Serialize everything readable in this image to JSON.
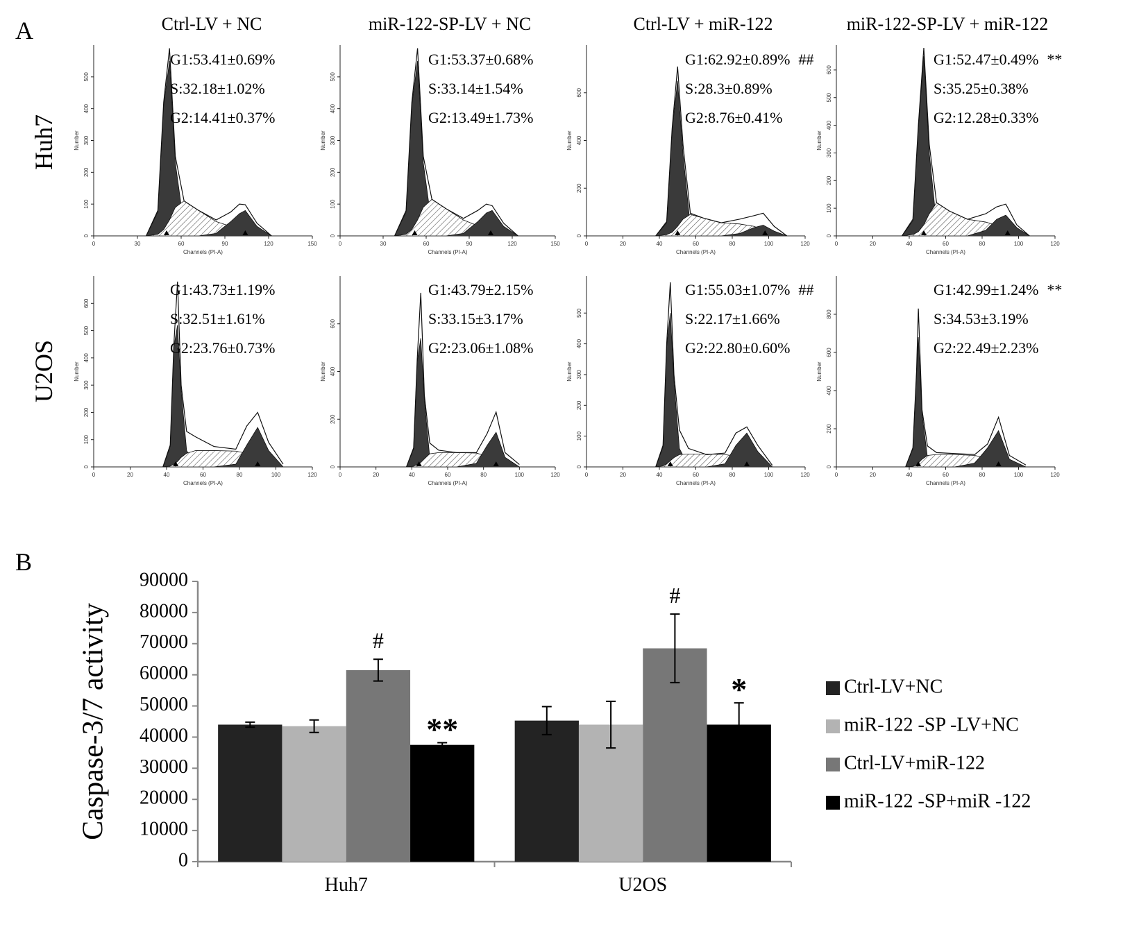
{
  "panel_labels": [
    "A",
    "B"
  ],
  "column_titles": [
    "Ctrl-LV + NC",
    "miR-122-SP-LV + NC",
    "Ctrl-LV + miR-122",
    "miR-122-SP-LV + miR-122"
  ],
  "row_titles": [
    "Huh7",
    "U2OS"
  ],
  "chart_data": [
    {
      "type": "area",
      "xlabel": "Channels (PI-A)",
      "ylabel": "Number",
      "xlim": [
        0,
        150
      ],
      "xticks": [
        0,
        30,
        60,
        90,
        120,
        150
      ],
      "ylim": [
        0,
        600
      ],
      "yticks": [
        0,
        100,
        200,
        300,
        400,
        500
      ],
      "x": [
        36,
        44,
        48,
        52,
        56,
        62,
        72,
        84,
        94,
        100,
        104,
        112,
        122
      ],
      "series": [
        {
          "style": "solid",
          "color": "#3a3a3a",
          "values": [
            0,
            75,
            410,
            550,
            230,
            30,
            0,
            0,
            0,
            0,
            0,
            0,
            0
          ]
        },
        {
          "style": "hatch",
          "color": "#555555",
          "values": [
            0,
            5,
            20,
            50,
            90,
            110,
            80,
            45,
            30,
            20,
            12,
            3,
            0
          ]
        },
        {
          "style": "solid",
          "color": "#3a3a3a",
          "values": [
            0,
            0,
            0,
            0,
            0,
            0,
            0,
            8,
            45,
            70,
            80,
            30,
            0
          ]
        },
        {
          "style": "outline",
          "color": "#111111",
          "values": [
            0,
            80,
            420,
            590,
            250,
            110,
            80,
            50,
            75,
            100,
            98,
            40,
            0
          ]
        }
      ],
      "peaks": [
        50,
        104
      ],
      "annotations": [
        "G1:53.41±0.69%",
        "S:32.18±1.02%",
        "G2:14.41±0.37%"
      ]
    },
    {
      "type": "area",
      "xlabel": "Channels (PI-A)",
      "ylabel": "Number",
      "xlim": [
        0,
        150
      ],
      "xticks": [
        0,
        30,
        60,
        90,
        120,
        150
      ],
      "ylim": [
        0,
        600
      ],
      "yticks": [
        0,
        100,
        200,
        300,
        400,
        500
      ],
      "x": [
        38,
        46,
        50,
        54,
        58,
        64,
        74,
        86,
        96,
        102,
        106,
        114,
        124
      ],
      "series": [
        {
          "style": "solid",
          "color": "#3a3a3a",
          "values": [
            0,
            75,
            410,
            550,
            230,
            30,
            0,
            0,
            0,
            0,
            0,
            0,
            0
          ]
        },
        {
          "style": "hatch",
          "color": "#555555",
          "values": [
            0,
            5,
            20,
            50,
            90,
            115,
            85,
            50,
            32,
            20,
            12,
            3,
            0
          ]
        },
        {
          "style": "solid",
          "color": "#3a3a3a",
          "values": [
            0,
            0,
            0,
            0,
            0,
            0,
            0,
            8,
            45,
            72,
            80,
            30,
            0
          ]
        },
        {
          "style": "outline",
          "color": "#111111",
          "values": [
            0,
            80,
            420,
            590,
            250,
            115,
            85,
            55,
            80,
            100,
            95,
            40,
            0
          ]
        }
      ],
      "peaks": [
        52,
        105
      ],
      "annotations": [
        "G1:53.37±0.68%",
        "S:33.14±1.54%",
        "G2:13.49±1.73%"
      ]
    },
    {
      "type": "area",
      "xlabel": "Channels (PI-A)",
      "ylabel": "Number",
      "xlim": [
        0,
        120
      ],
      "xticks": [
        0,
        20,
        40,
        60,
        80,
        100,
        120
      ],
      "ylim": [
        0,
        800
      ],
      "yticks": [
        0,
        200,
        400,
        600
      ],
      "x": [
        38,
        44,
        47,
        50,
        53,
        57,
        64,
        74,
        84,
        92,
        97,
        103,
        110
      ],
      "series": [
        {
          "style": "solid",
          "color": "#3a3a3a",
          "values": [
            0,
            55,
            440,
            650,
            340,
            40,
            0,
            0,
            0,
            0,
            0,
            0,
            0
          ]
        },
        {
          "style": "hatch",
          "color": "#555555",
          "values": [
            0,
            5,
            15,
            40,
            70,
            90,
            75,
            55,
            50,
            40,
            25,
            8,
            0
          ]
        },
        {
          "style": "solid",
          "color": "#3a3a3a",
          "values": [
            0,
            0,
            0,
            0,
            0,
            0,
            0,
            0,
            10,
            35,
            45,
            20,
            0
          ]
        },
        {
          "style": "outline",
          "color": "#111111",
          "values": [
            0,
            60,
            450,
            710,
            380,
            95,
            75,
            55,
            70,
            85,
            95,
            40,
            0
          ]
        }
      ],
      "peaks": [
        50,
        98
      ],
      "annotations": [
        "G1:62.92±0.89%",
        "S:28.3±0.89%",
        "G2:8.76±0.41%"
      ],
      "significance": "##"
    },
    {
      "type": "area",
      "xlabel": "Channels (PI-A)",
      "ylabel": "Number",
      "xlim": [
        0,
        120
      ],
      "xticks": [
        0,
        20,
        40,
        60,
        80,
        100,
        120
      ],
      "ylim": [
        0,
        690
      ],
      "yticks": [
        0,
        100,
        200,
        300,
        400,
        500,
        600
      ],
      "x": [
        36,
        42,
        45,
        48,
        51,
        55,
        62,
        72,
        82,
        88,
        93,
        99,
        106
      ],
      "series": [
        {
          "style": "solid",
          "color": "#3a3a3a",
          "values": [
            0,
            55,
            390,
            650,
            300,
            40,
            0,
            0,
            0,
            0,
            0,
            0,
            0
          ]
        },
        {
          "style": "hatch",
          "color": "#555555",
          "values": [
            0,
            5,
            15,
            40,
            80,
            120,
            90,
            60,
            50,
            38,
            20,
            5,
            0
          ]
        },
        {
          "style": "solid",
          "color": "#3a3a3a",
          "values": [
            0,
            0,
            0,
            0,
            0,
            0,
            0,
            0,
            20,
            60,
            75,
            30,
            0
          ]
        },
        {
          "style": "outline",
          "color": "#111111",
          "values": [
            0,
            60,
            400,
            680,
            330,
            120,
            90,
            60,
            80,
            105,
            115,
            40,
            0
          ]
        }
      ],
      "peaks": [
        48,
        94
      ],
      "annotations": [
        "G1:52.47±0.49%",
        "S:35.25±0.38%",
        "G2:12.28±0.33%"
      ],
      "significance": "**"
    },
    {
      "type": "area",
      "xlabel": "Channels (PI-A)",
      "ylabel": "Number",
      "xlim": [
        0,
        120
      ],
      "xticks": [
        0,
        20,
        40,
        60,
        80,
        100,
        120
      ],
      "ylim": [
        0,
        700
      ],
      "yticks": [
        0,
        100,
        200,
        300,
        400,
        500,
        600
      ],
      "x": [
        38,
        42,
        44,
        46,
        48,
        51,
        56,
        66,
        78,
        84,
        90,
        96,
        104
      ],
      "series": [
        {
          "style": "solid",
          "color": "#3a3a3a",
          "values": [
            0,
            75,
            440,
            520,
            280,
            60,
            5,
            0,
            0,
            0,
            0,
            0,
            0
          ]
        },
        {
          "style": "hatch",
          "color": "#555555",
          "values": [
            0,
            3,
            10,
            20,
            35,
            50,
            60,
            60,
            58,
            50,
            30,
            8,
            0
          ]
        },
        {
          "style": "solid",
          "color": "#3a3a3a",
          "values": [
            0,
            0,
            0,
            0,
            0,
            0,
            0,
            0,
            10,
            80,
            145,
            60,
            0
          ]
        },
        {
          "style": "outline",
          "color": "#111111",
          "values": [
            0,
            80,
            450,
            680,
            300,
            130,
            110,
            75,
            65,
            150,
            200,
            90,
            10
          ]
        }
      ],
      "peaks": [
        45,
        90
      ],
      "annotations": [
        "G1:43.73±1.19%",
        "S:32.51±1.61%",
        "G2:23.76±0.73%"
      ]
    },
    {
      "type": "area",
      "xlabel": "Channels (PI-A)",
      "ylabel": "Number",
      "xlim": [
        0,
        120
      ],
      "xticks": [
        0,
        20,
        40,
        60,
        80,
        100,
        120
      ],
      "ylim": [
        0,
        800
      ],
      "yticks": [
        0,
        200,
        400,
        600
      ],
      "x": [
        37,
        41,
        43,
        45,
        47,
        50,
        55,
        65,
        76,
        82,
        87,
        92,
        100
      ],
      "series": [
        {
          "style": "solid",
          "color": "#3a3a3a",
          "values": [
            0,
            75,
            440,
            540,
            280,
            40,
            3,
            0,
            0,
            0,
            0,
            0,
            0
          ]
        },
        {
          "style": "hatch",
          "color": "#555555",
          "values": [
            0,
            3,
            10,
            20,
            35,
            55,
            60,
            60,
            58,
            45,
            25,
            5,
            0
          ]
        },
        {
          "style": "solid",
          "color": "#3a3a3a",
          "values": [
            0,
            0,
            0,
            0,
            0,
            0,
            0,
            0,
            15,
            90,
            145,
            40,
            0
          ]
        },
        {
          "style": "outline",
          "color": "#111111",
          "values": [
            0,
            80,
            450,
            730,
            300,
            100,
            70,
            60,
            60,
            140,
            230,
            60,
            10
          ]
        }
      ],
      "peaks": [
        44,
        87
      ],
      "annotations": [
        "G1:43.79±2.15%",
        "S:33.15±3.17%",
        "G2:23.06±1.08%"
      ]
    },
    {
      "type": "area",
      "xlabel": "Channels (PI-A)",
      "ylabel": "Number",
      "xlim": [
        0,
        120
      ],
      "xticks": [
        0,
        20,
        40,
        60,
        80,
        100,
        120
      ],
      "ylim": [
        0,
        620
      ],
      "yticks": [
        0,
        100,
        200,
        300,
        400,
        500
      ],
      "x": [
        38,
        42,
        44,
        46,
        48,
        51,
        56,
        66,
        76,
        82,
        88,
        94,
        102
      ],
      "series": [
        {
          "style": "solid",
          "color": "#3a3a3a",
          "values": [
            0,
            65,
            390,
            500,
            280,
            60,
            3,
            0,
            0,
            0,
            0,
            0,
            0
          ]
        },
        {
          "style": "hatch",
          "color": "#555555",
          "values": [
            0,
            3,
            10,
            20,
            30,
            40,
            42,
            42,
            40,
            35,
            25,
            8,
            0
          ]
        },
        {
          "style": "solid",
          "color": "#3a3a3a",
          "values": [
            0,
            0,
            0,
            0,
            0,
            0,
            0,
            0,
            10,
            70,
            110,
            50,
            0
          ]
        },
        {
          "style": "outline",
          "color": "#111111",
          "values": [
            0,
            70,
            400,
            600,
            300,
            120,
            60,
            40,
            45,
            110,
            130,
            70,
            5
          ]
        }
      ],
      "peaks": [
        46,
        88
      ],
      "annotations": [
        "G1:55.03±1.07%",
        "S:22.17±1.66%",
        "G2:22.80±0.60%"
      ],
      "significance": "##"
    },
    {
      "type": "area",
      "xlabel": "Channels (PI-A)",
      "ylabel": "Number",
      "xlim": [
        0,
        120
      ],
      "xticks": [
        0,
        20,
        40,
        60,
        80,
        100,
        120
      ],
      "ylim": [
        0,
        1000
      ],
      "yticks": [
        0,
        200,
        400,
        600,
        800
      ],
      "x": [
        38,
        42,
        44,
        45,
        47,
        50,
        55,
        65,
        76,
        83,
        89,
        95,
        104
      ],
      "series": [
        {
          "style": "solid",
          "color": "#3a3a3a",
          "values": [
            0,
            95,
            490,
            680,
            280,
            50,
            3,
            0,
            0,
            0,
            0,
            0,
            0
          ]
        },
        {
          "style": "hatch",
          "color": "#555555",
          "values": [
            0,
            3,
            10,
            20,
            40,
            60,
            65,
            65,
            60,
            45,
            25,
            5,
            0
          ]
        },
        {
          "style": "solid",
          "color": "#3a3a3a",
          "values": [
            0,
            0,
            0,
            0,
            0,
            0,
            0,
            0,
            20,
            100,
            190,
            40,
            0
          ]
        },
        {
          "style": "outline",
          "color": "#111111",
          "values": [
            0,
            100,
            500,
            830,
            300,
            110,
            75,
            70,
            65,
            120,
            260,
            60,
            10
          ]
        }
      ],
      "peaks": [
        45,
        89
      ],
      "annotations": [
        "G1:42.99±1.24%",
        "S:34.53±3.19%",
        "G2:22.49±2.23%"
      ],
      "significance": "**"
    },
    {
      "type": "bar",
      "ylabel": "Caspase-3/7 activity",
      "categories": [
        "Huh7",
        "U2OS"
      ],
      "ylim": [
        0,
        90000
      ],
      "yticks": [
        0,
        10000,
        20000,
        30000,
        40000,
        50000,
        60000,
        70000,
        80000,
        90000
      ],
      "legend": "right",
      "series": [
        {
          "name": "Ctrl-LV+NC",
          "color": "#232323",
          "values": [
            44000,
            45300
          ],
          "errors": [
            800,
            4500
          ]
        },
        {
          "name": "miR-122 -SP -LV+NC",
          "color": "#b3b3b3",
          "values": [
            43500,
            44000
          ],
          "errors": [
            2000,
            7500
          ]
        },
        {
          "name": "Ctrl-LV+miR-122",
          "color": "#777777",
          "values": [
            61500,
            68500
          ],
          "errors": [
            3500,
            11000
          ],
          "annotations": [
            "#",
            "#"
          ]
        },
        {
          "name": "miR-122 -SP+miR -122",
          "color": "#000000",
          "values": [
            37500,
            44000
          ],
          "errors": [
            700,
            7000
          ],
          "annotations": [
            "**",
            "*"
          ]
        }
      ]
    }
  ]
}
